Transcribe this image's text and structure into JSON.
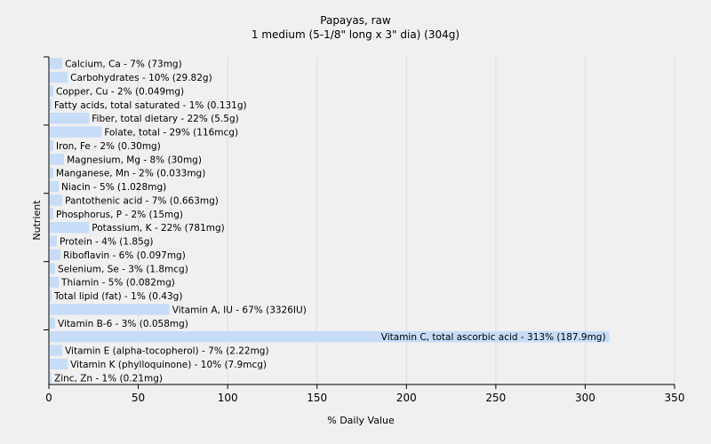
{
  "chart_data": {
    "type": "bar",
    "orientation": "horizontal",
    "title": "Papayas, raw",
    "subtitle": "1 medium (5-1/8\" long x 3\" dia) (304g)",
    "xlabel": "% Daily Value",
    "ylabel": "Nutrient",
    "xlim": [
      0,
      350
    ],
    "xticks": [
      0,
      50,
      100,
      150,
      200,
      250,
      300,
      350
    ],
    "grid": true,
    "legend": "none",
    "bar_color": "#c6dcf7",
    "categories": [
      "Calcium, Ca - 7% (73mg)",
      "Carbohydrates - 10% (29.82g)",
      "Copper, Cu - 2% (0.049mg)",
      "Fatty acids, total saturated - 1% (0.131g)",
      "Fiber, total dietary - 22% (5.5g)",
      "Folate, total - 29% (116mcg)",
      "Iron, Fe - 2% (0.30mg)",
      "Magnesium, Mg - 8% (30mg)",
      "Manganese, Mn - 2% (0.033mg)",
      "Niacin - 5% (1.028mg)",
      "Pantothenic acid - 7% (0.663mg)",
      "Phosphorus, P - 2% (15mg)",
      "Potassium, K - 22% (781mg)",
      "Protein - 4% (1.85g)",
      "Riboflavin - 6% (0.097mg)",
      "Selenium, Se - 3% (1.8mcg)",
      "Thiamin - 5% (0.082mg)",
      "Total lipid (fat) - 1% (0.43g)",
      "Vitamin A, IU - 67% (3326IU)",
      "Vitamin B-6 - 3% (0.058mg)",
      "Vitamin C, total ascorbic acid - 313% (187.9mg)",
      "Vitamin E (alpha-tocopherol) - 7% (2.22mg)",
      "Vitamin K (phylloquinone) - 10% (7.9mcg)",
      "Zinc, Zn - 1% (0.21mg)"
    ],
    "values": [
      7,
      10,
      2,
      1,
      22,
      29,
      2,
      8,
      2,
      5,
      7,
      2,
      22,
      4,
      6,
      3,
      5,
      1,
      67,
      3,
      313,
      7,
      10,
      1
    ]
  }
}
